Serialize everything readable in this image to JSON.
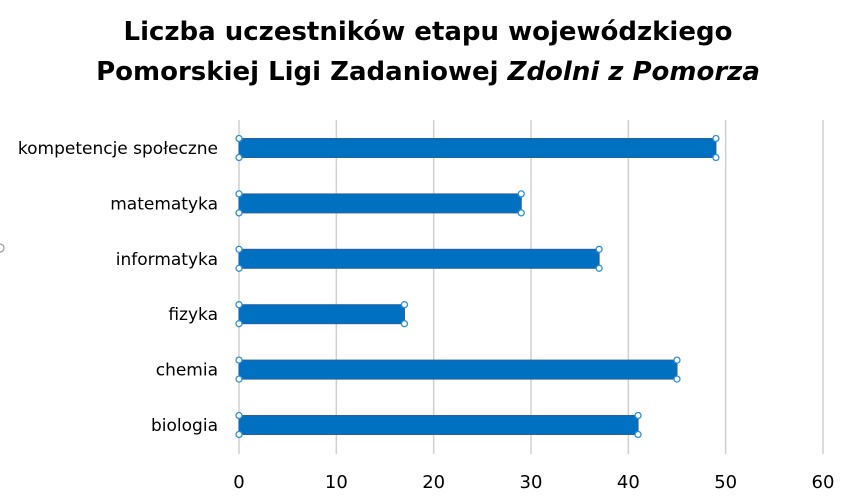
{
  "chart_data": {
    "type": "bar",
    "orientation": "horizontal",
    "title_line1": "Liczba uczestników etapu wojewódzkiego",
    "title_line2_regular": "Pomorskiej Ligi Zadaniowej ",
    "title_line2_italic": "Zdolni z Pomorza",
    "categories": [
      "kompetencje społeczne",
      "matematyka",
      "informatyka",
      "fizyka",
      "chemia",
      "biologia"
    ],
    "values": [
      49,
      29,
      37,
      17,
      45,
      41
    ],
    "xlim": [
      0,
      60
    ],
    "xticks": [
      "0",
      "10",
      "20",
      "30",
      "40",
      "50",
      "60"
    ],
    "grid": "vertical",
    "bar_color": "#0070c0",
    "selection_handle_color": "#2e8fd8"
  }
}
